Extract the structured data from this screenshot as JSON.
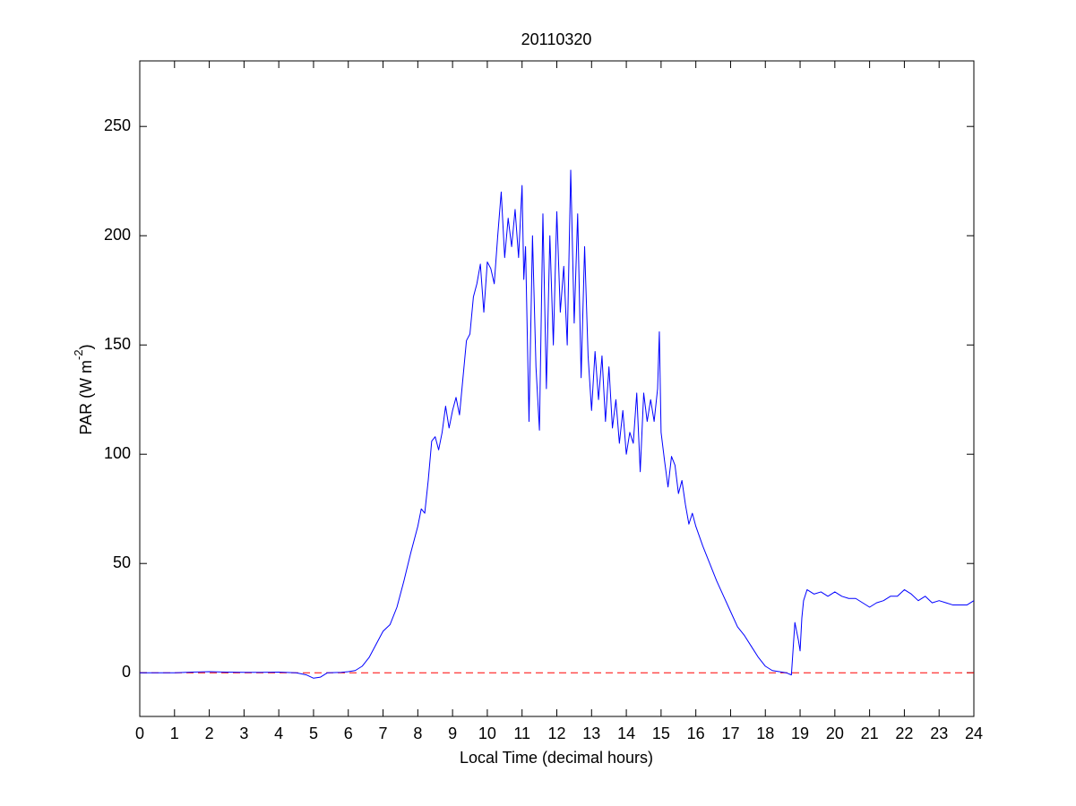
{
  "chart_data": {
    "type": "line",
    "title": "20110320",
    "xlabel": "Local Time (decimal hours)",
    "ylabel": {
      "text": "PAR (W m",
      "superscript": "-2",
      "suffix": ")"
    },
    "x": [
      0,
      0.5,
      1,
      1.5,
      2,
      2.5,
      3,
      3.5,
      4,
      4.5,
      4.8,
      5,
      5.2,
      5.4,
      5.8,
      6,
      6.2,
      6.4,
      6.6,
      6.8,
      7,
      7.2,
      7.4,
      7.6,
      7.8,
      8,
      8.1,
      8.2,
      8.3,
      8.4,
      8.5,
      8.6,
      8.7,
      8.8,
      8.9,
      9,
      9.1,
      9.2,
      9.3,
      9.4,
      9.5,
      9.6,
      9.7,
      9.8,
      9.9,
      10,
      10.1,
      10.2,
      10.3,
      10.4,
      10.5,
      10.6,
      10.7,
      10.8,
      10.9,
      11,
      11.05,
      11.1,
      11.2,
      11.3,
      11.4,
      11.5,
      11.6,
      11.7,
      11.8,
      11.9,
      12,
      12.1,
      12.2,
      12.3,
      12.4,
      12.5,
      12.6,
      12.7,
      12.8,
      12.9,
      13,
      13.1,
      13.2,
      13.3,
      13.4,
      13.5,
      13.6,
      13.7,
      13.8,
      13.9,
      14,
      14.1,
      14.2,
      14.3,
      14.4,
      14.5,
      14.6,
      14.7,
      14.8,
      14.9,
      14.95,
      15,
      15.1,
      15.2,
      15.3,
      15.4,
      15.5,
      15.6,
      15.7,
      15.8,
      15.9,
      16,
      16.2,
      16.4,
      16.6,
      16.8,
      17,
      17.2,
      17.4,
      17.6,
      17.8,
      18,
      18.2,
      18.4,
      18.6,
      18.75,
      18.85,
      18.95,
      19,
      19.05,
      19.1,
      19.2,
      19.4,
      19.6,
      19.8,
      20,
      20.2,
      20.4,
      20.6,
      20.8,
      21,
      21.2,
      21.4,
      21.6,
      21.8,
      22,
      22.2,
      22.4,
      22.6,
      22.8,
      23,
      23.2,
      23.4,
      23.6,
      23.8,
      24
    ],
    "series": [
      {
        "name": "PAR",
        "color": "#0000ff",
        "values": [
          0,
          0,
          0,
          0.3,
          0.5,
          0.3,
          0.2,
          0.2,
          0.3,
          0,
          -1,
          -2.5,
          -2,
          0,
          0.2,
          0.5,
          1,
          3,
          7,
          13,
          19,
          22,
          30,
          42,
          55,
          67,
          75,
          73,
          88,
          106,
          108,
          102,
          110,
          122,
          112,
          120,
          126,
          118,
          135,
          152,
          155,
          172,
          178,
          187,
          165,
          188,
          185,
          178,
          200,
          220,
          190,
          208,
          195,
          212,
          190,
          223,
          180,
          195,
          115,
          200,
          140,
          111,
          210,
          130,
          200,
          150,
          211,
          165,
          186,
          150,
          230,
          160,
          210,
          135,
          195,
          145,
          120,
          147,
          125,
          145,
          115,
          140,
          112,
          125,
          105,
          120,
          100,
          110,
          105,
          128,
          92,
          128,
          115,
          125,
          115,
          130,
          156,
          110,
          97,
          85,
          99,
          95,
          82,
          88,
          77,
          68,
          73,
          67,
          58,
          50,
          42,
          35,
          28,
          21,
          17,
          12,
          7,
          3,
          1,
          0.5,
          0,
          -1,
          23,
          15,
          10,
          25,
          33,
          38,
          36,
          37,
          35,
          37,
          35,
          34,
          34,
          32,
          30,
          32,
          33,
          35,
          35,
          38,
          36,
          33,
          35,
          32,
          33,
          32,
          31,
          31,
          31,
          33
        ]
      }
    ],
    "reference_line": {
      "value": 0,
      "color": "#ff0000",
      "style": "dashed"
    },
    "xlim": [
      0,
      24
    ],
    "xticks": [
      0,
      1,
      2,
      3,
      4,
      5,
      6,
      7,
      8,
      9,
      10,
      11,
      12,
      13,
      14,
      15,
      16,
      17,
      18,
      19,
      20,
      21,
      22,
      23,
      24
    ],
    "ylim": [
      -20,
      280
    ],
    "yticks": [
      0,
      50,
      100,
      150,
      200,
      250
    ],
    "grid": false
  }
}
